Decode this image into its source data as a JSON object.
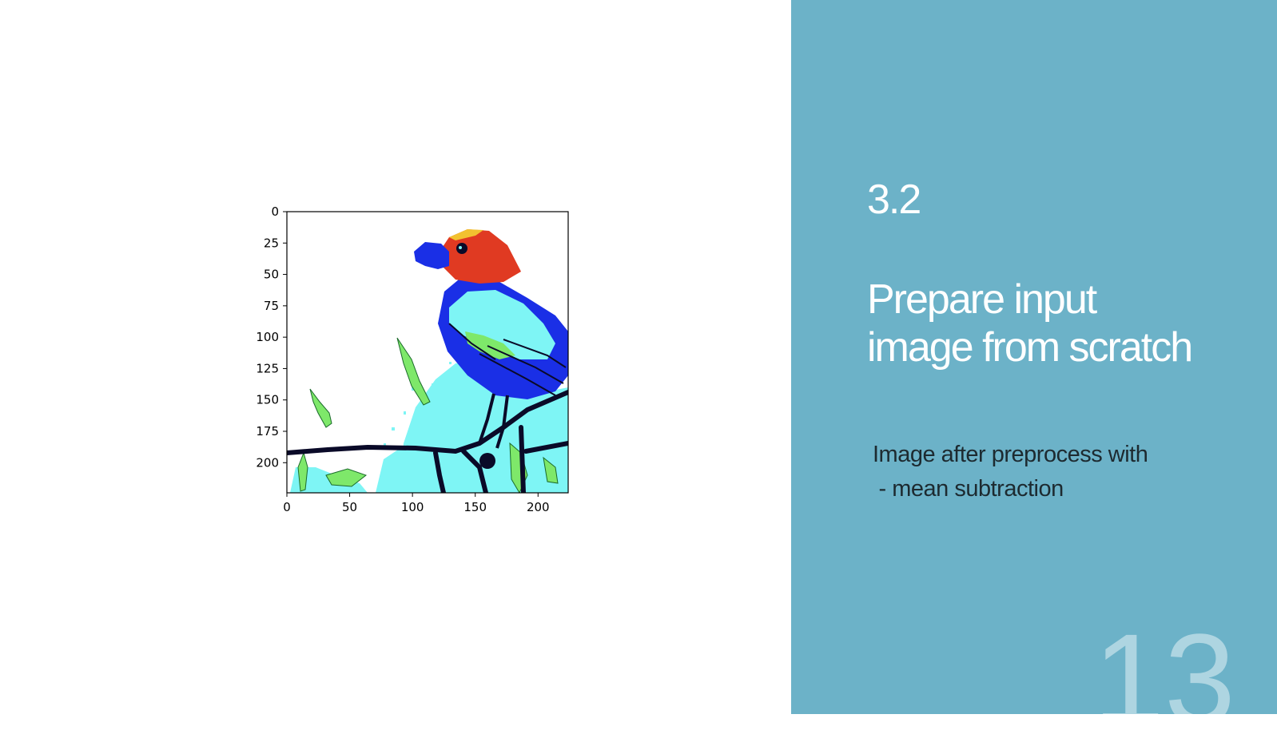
{
  "slide": {
    "section_number": "3.2",
    "title_lines": [
      "Prepare input",
      "image from scratch"
    ],
    "body_lines": [
      "Image after preprocess with",
      " - mean subtraction"
    ],
    "page_number": "13",
    "colors": {
      "panel": "#6cb2c8",
      "title": "#ffffff",
      "body": "#1d2a30"
    }
  },
  "chart_data": {
    "type": "image",
    "x_ticks": [
      0,
      50,
      100,
      150,
      200
    ],
    "y_ticks": [
      0,
      25,
      50,
      75,
      100,
      125,
      150,
      175,
      200
    ],
    "xlim": [
      0,
      224
    ],
    "ylim": [
      224,
      0
    ],
    "image_description_colors": [
      "#ffffff",
      "#7ef5f5",
      "#1a2fe6",
      "#e03a22",
      "#7ee86a",
      "#0a0a28"
    ]
  }
}
